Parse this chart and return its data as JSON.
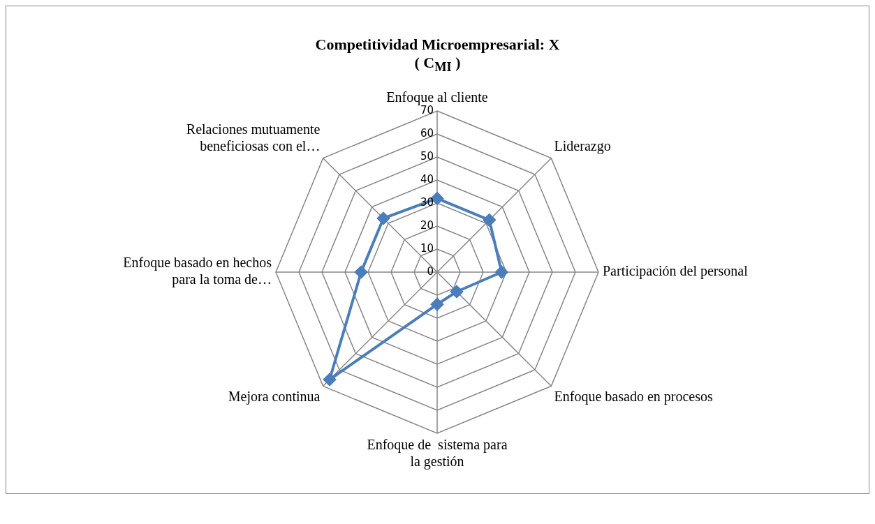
{
  "chart_data": {
    "type": "radar",
    "title": "Competitividad Microempresarial: X",
    "subtitle": "( C$_{MI}$ )",
    "categories": [
      "Enfoque al cliente",
      "Liderazgo",
      "Participación del personal",
      "Enfoque basado en procesos",
      "Enfoque de  sistema para la gestión",
      "Mejora continua",
      "Enfoque basado en hechos para la toma de…",
      "Relaciones mutuamente beneficiosas con el…"
    ],
    "series": [
      {
        "color": "#4a7ebb",
        "values": [
          32,
          32,
          28,
          12,
          14,
          66,
          33,
          33
        ]
      }
    ],
    "ylim": [
      0,
      70
    ],
    "yticks": [
      0,
      10,
      20,
      30,
      40,
      50,
      60,
      70
    ],
    "grid": true,
    "legend": false,
    "marker": "diamond",
    "line_style": "solid"
  }
}
